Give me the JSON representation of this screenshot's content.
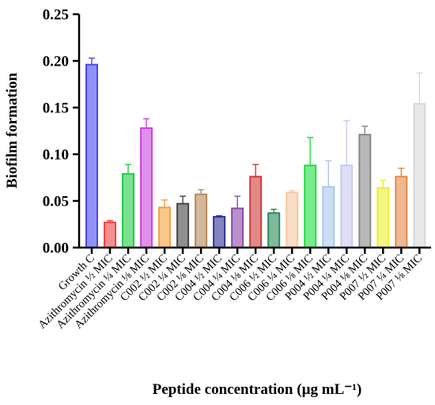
{
  "chart_data": {
    "type": "bar",
    "ylabel": "Biofilm formation",
    "xlabel": "Peptide concentration (µg mL⁻¹)",
    "ylim": [
      0,
      0.25
    ],
    "yticks": [
      "0.00",
      "0.05",
      "0.10",
      "0.15",
      "0.20",
      "0.25"
    ],
    "grid": false,
    "legend": "none",
    "categories": [
      "Growth C",
      "Azithromycin ½ MIC",
      "Azithromycin ¼ MIC",
      "Azithromycin ⅛ MIC",
      "C002 ½ MIC",
      "C002 ¼ MIC",
      "C002 ⅛ MIC",
      "C004 ½ MIC",
      "C004 ¼ MIC",
      "C004 ⅛ MIC",
      "C006 ½ MIC",
      "C006 ¼ MIC",
      "C006 ⅛ MIC",
      "P004 ½ MIC",
      "P004 ¼ MIC",
      "P004 ⅛ MIC",
      "P007 ½ MIC",
      "P007 ¼ MIC",
      "P007 ⅛ MIC"
    ],
    "values": [
      0.196,
      0.027,
      0.079,
      0.128,
      0.043,
      0.047,
      0.057,
      0.033,
      0.042,
      0.076,
      0.037,
      0.059,
      0.088,
      0.065,
      0.088,
      0.121,
      0.064,
      0.076,
      0.154
    ],
    "errors": [
      0.007,
      0.002,
      0.01,
      0.01,
      0.008,
      0.008,
      0.005,
      0.001,
      0.013,
      0.013,
      0.004,
      0.002,
      0.03,
      0.028,
      0.048,
      0.009,
      0.008,
      0.009,
      0.033
    ],
    "colors": [
      "#4848ee",
      "#ee4444",
      "#22cc44",
      "#cc44dd",
      "#f5a040",
      "#444444",
      "#b48a5a",
      "#30309a",
      "#8a4aaa",
      "#cc3a3a",
      "#2a8a5a",
      "#f5c8a0",
      "#22dd44",
      "#a8c8ee",
      "#c8c8ee",
      "#888888",
      "#eeee30",
      "#e28a4a",
      "#d8d8d8"
    ]
  }
}
